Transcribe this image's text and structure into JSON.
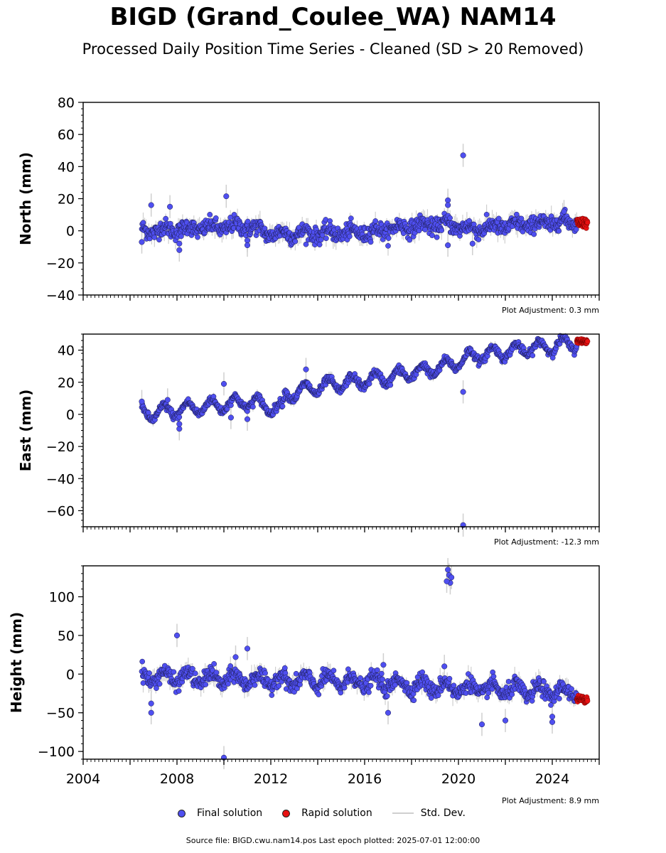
{
  "title": "BIGD (Grand_Coulee_WA) NAM14",
  "subtitle": "Processed Daily Position Time Series - Cleaned (SD > 20 Removed)",
  "colors": {
    "final": "#4f4ff0",
    "rapid": "#e81212",
    "stddev": "#cfcfcf",
    "edge": "#1a1a4a"
  },
  "legend": {
    "final": "Final solution",
    "rapid": "Rapid solution",
    "stddev": "Std. Dev."
  },
  "footer": "Source file: BIGD.cwu.nam14.pos  Last epoch plotted: 2025-07-01 12:00:00",
  "chart_data": [
    {
      "type": "scatter",
      "ylabel": "North (mm)",
      "adjustment": "Plot Adjustment: 0.3 mm",
      "xlim": [
        2004,
        2026
      ],
      "ylim": [
        -40,
        80
      ],
      "yticks": [
        -40,
        -20,
        0,
        20,
        40,
        60,
        80
      ],
      "xticks": [],
      "trend": [
        [
          2006.5,
          0
        ],
        [
          2011,
          3
        ],
        [
          2012,
          -2
        ],
        [
          2016,
          -1
        ],
        [
          2018,
          3
        ],
        [
          2019.5,
          4
        ],
        [
          2020.5,
          1
        ],
        [
          2022,
          3
        ],
        [
          2025,
          6
        ]
      ],
      "amplitude": 2,
      "noise": 2.5,
      "final_outliers": [
        [
          2006.5,
          -7
        ],
        [
          2006.9,
          16
        ],
        [
          2007.7,
          15
        ],
        [
          2008.1,
          -12
        ],
        [
          2008.1,
          -8
        ],
        [
          2010.1,
          21.5
        ],
        [
          2011.0,
          -6
        ],
        [
          2011.0,
          -9
        ],
        [
          2019.55,
          19
        ],
        [
          2019.55,
          16
        ],
        [
          2019.55,
          -9
        ],
        [
          2020.2,
          47
        ],
        [
          2020.6,
          -8
        ],
        [
          2024.5,
          12
        ]
      ],
      "rapid": {
        "x_range": [
          2025.05,
          2025.5
        ],
        "y_center": 5,
        "spread": 3
      }
    },
    {
      "type": "scatter",
      "ylabel": "East (mm)",
      "adjustment": "Plot Adjustment: -12.3 mm",
      "xlim": [
        2004,
        2026
      ],
      "ylim": [
        -70,
        50
      ],
      "yticks": [
        -60,
        -40,
        -20,
        0,
        20,
        40
      ],
      "xticks": [],
      "trend": [
        [
          2006.5,
          0
        ],
        [
          2011,
          8
        ],
        [
          2012.5,
          3
        ],
        [
          2012.6,
          12
        ],
        [
          2014,
          17
        ],
        [
          2017,
          23
        ],
        [
          2018.5,
          27
        ],
        [
          2019.5,
          30
        ],
        [
          2020.5,
          36
        ],
        [
          2023,
          41
        ],
        [
          2025.5,
          45
        ]
      ],
      "amplitude": 4,
      "noise": 1.2,
      "final_outliers": [
        [
          2006.5,
          8
        ],
        [
          2007.6,
          9
        ],
        [
          2008.1,
          -9
        ],
        [
          2008.1,
          -6
        ],
        [
          2010.0,
          19
        ],
        [
          2010.3,
          -2
        ],
        [
          2011.0,
          -3
        ],
        [
          2013.5,
          28
        ],
        [
          2020.2,
          14
        ],
        [
          2020.2,
          -69
        ]
      ],
      "rapid": {
        "x_range": [
          2025.05,
          2025.5
        ],
        "y_center": 45.5,
        "spread": 1.5
      }
    },
    {
      "type": "scatter",
      "ylabel": "Height (mm)",
      "adjustment": "Plot Adjustment: 8.9 mm",
      "xlim": [
        2004,
        2026
      ],
      "ylim": [
        -110,
        140
      ],
      "yticks": [
        -100,
        -50,
        0,
        50,
        100
      ],
      "xticks": [
        2004,
        2008,
        2012,
        2016,
        2020,
        2024
      ],
      "trend": [
        [
          2006.5,
          -3
        ],
        [
          2012,
          -8
        ],
        [
          2016,
          -10
        ],
        [
          2020,
          -18
        ],
        [
          2025.5,
          -25
        ]
      ],
      "amplitude": 8,
      "noise": 5,
      "final_outliers": [
        [
          2006.9,
          -50
        ],
        [
          2006.9,
          -38
        ],
        [
          2008.0,
          50
        ],
        [
          2010.0,
          -108
        ],
        [
          2010.5,
          22
        ],
        [
          2011.0,
          33
        ],
        [
          2016.8,
          12
        ],
        [
          2017.0,
          -50
        ],
        [
          2019.4,
          10
        ],
        [
          2019.55,
          135
        ],
        [
          2019.6,
          128
        ],
        [
          2019.65,
          118
        ],
        [
          2019.5,
          120
        ],
        [
          2019.7,
          125
        ],
        [
          2021.0,
          -65
        ],
        [
          2022.0,
          -60
        ],
        [
          2024.0,
          -62
        ],
        [
          2024.0,
          -55
        ]
      ],
      "rapid": {
        "x_range": [
          2025.05,
          2025.5
        ],
        "y_center": -32,
        "spread": 4
      }
    }
  ]
}
